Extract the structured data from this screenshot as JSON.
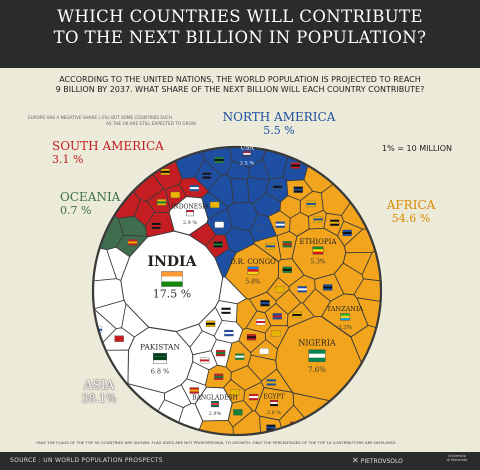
{
  "title_lines": [
    "WHICH COUNTRIES WILL CONTRIBUTE",
    "TO THE NEXT BILLION IN POPULATION?"
  ],
  "subtitle_lines": [
    "ACCORDING TO THE UNITED NATIONS, THE WORLD POPULATION IS PROJECTED TO REACH",
    "9 BILLION BY 2037. WHAT SHARE OF THE NEXT BILLION WILL EACH COUNTRY CONTRIBUTE?"
  ],
  "europe_note_lines": [
    "EUROPE HAS A NEGATIVE SHARE (-2%) BUT SOME COUNTRIES SUCH",
    "AS THE UK ARE STILL EXPECTED TO GROW"
  ],
  "scale_note": "1% = 10 MILLION",
  "footnote": "ONLY THE FLAGS OF THE TOP 50 COUNTRIES ARE SHOWN. FLAG SIZES ARE NOT PROPORTIONAL TO GROWTH. ONLY THE PERCENTAGES OF THE TOP 10 CONTRIBUTORS ARE DISPLAYED.",
  "source": "SOURCE : UN WORLD POPULATION PROSPECTS",
  "handle": "PIETROVSOLO",
  "university_lines": [
    "Universita",
    "di Macerata"
  ],
  "colors": {
    "africa": "#f2a51c",
    "asia": "#ffffff",
    "north_america": "#1f4fa3",
    "south_america": "#c41e22",
    "oceania": "#3f6e4e",
    "cell_border": "#3a3a3a",
    "header_bg": "#2a2b2d",
    "background": "#ecead8"
  },
  "chart_data": {
    "type": "voronoi-treemap",
    "regions": [
      {
        "name": "AFRICA",
        "value": 54.6,
        "label": "54.6 %",
        "color": "#f2a51c"
      },
      {
        "name": "ASIA",
        "value": 38.1,
        "label": "38.1%",
        "color": "#ffffff"
      },
      {
        "name": "NORTH AMERICA",
        "value": 5.5,
        "label": "5.5 %",
        "color": "#1f4fa3"
      },
      {
        "name": "SOUTH AMERICA",
        "value": 3.1,
        "label": "3.1 %",
        "color": "#c41e22"
      },
      {
        "name": "OCEANIA",
        "value": 0.7,
        "label": "0.7 %",
        "color": "#3f6e4e"
      }
    ],
    "countries": [
      {
        "name": "INDIA",
        "value": 17.5,
        "label": "17.5 %",
        "region": "ASIA"
      },
      {
        "name": "NIGERIA",
        "value": 7.6,
        "label": "7.6%",
        "region": "AFRICA"
      },
      {
        "name": "PAKISTAN",
        "value": 6.8,
        "label": "6.8 %",
        "region": "ASIA"
      },
      {
        "name": "D.R. CONGO",
        "value": 5.8,
        "label": "5.8%",
        "region": "AFRICA"
      },
      {
        "name": "ETHIOPIA",
        "value": 5.3,
        "label": "5.3%",
        "region": "AFRICA"
      },
      {
        "name": "TANZANIA",
        "value": 3.3,
        "label": "3.3%",
        "region": "AFRICA"
      },
      {
        "name": "INDONESIA",
        "value": 2.9,
        "label": "2.9 %",
        "region": "ASIA"
      },
      {
        "name": "BANGLADESH",
        "value": 2.9,
        "label": "2.9%",
        "region": "ASIA"
      },
      {
        "name": "EGYPT",
        "value": 2.8,
        "label": "2.8 %",
        "region": "AFRICA"
      },
      {
        "name": "USA",
        "value": 2.5,
        "label": "2.5 %",
        "region": "NORTH AMERICA"
      }
    ]
  }
}
